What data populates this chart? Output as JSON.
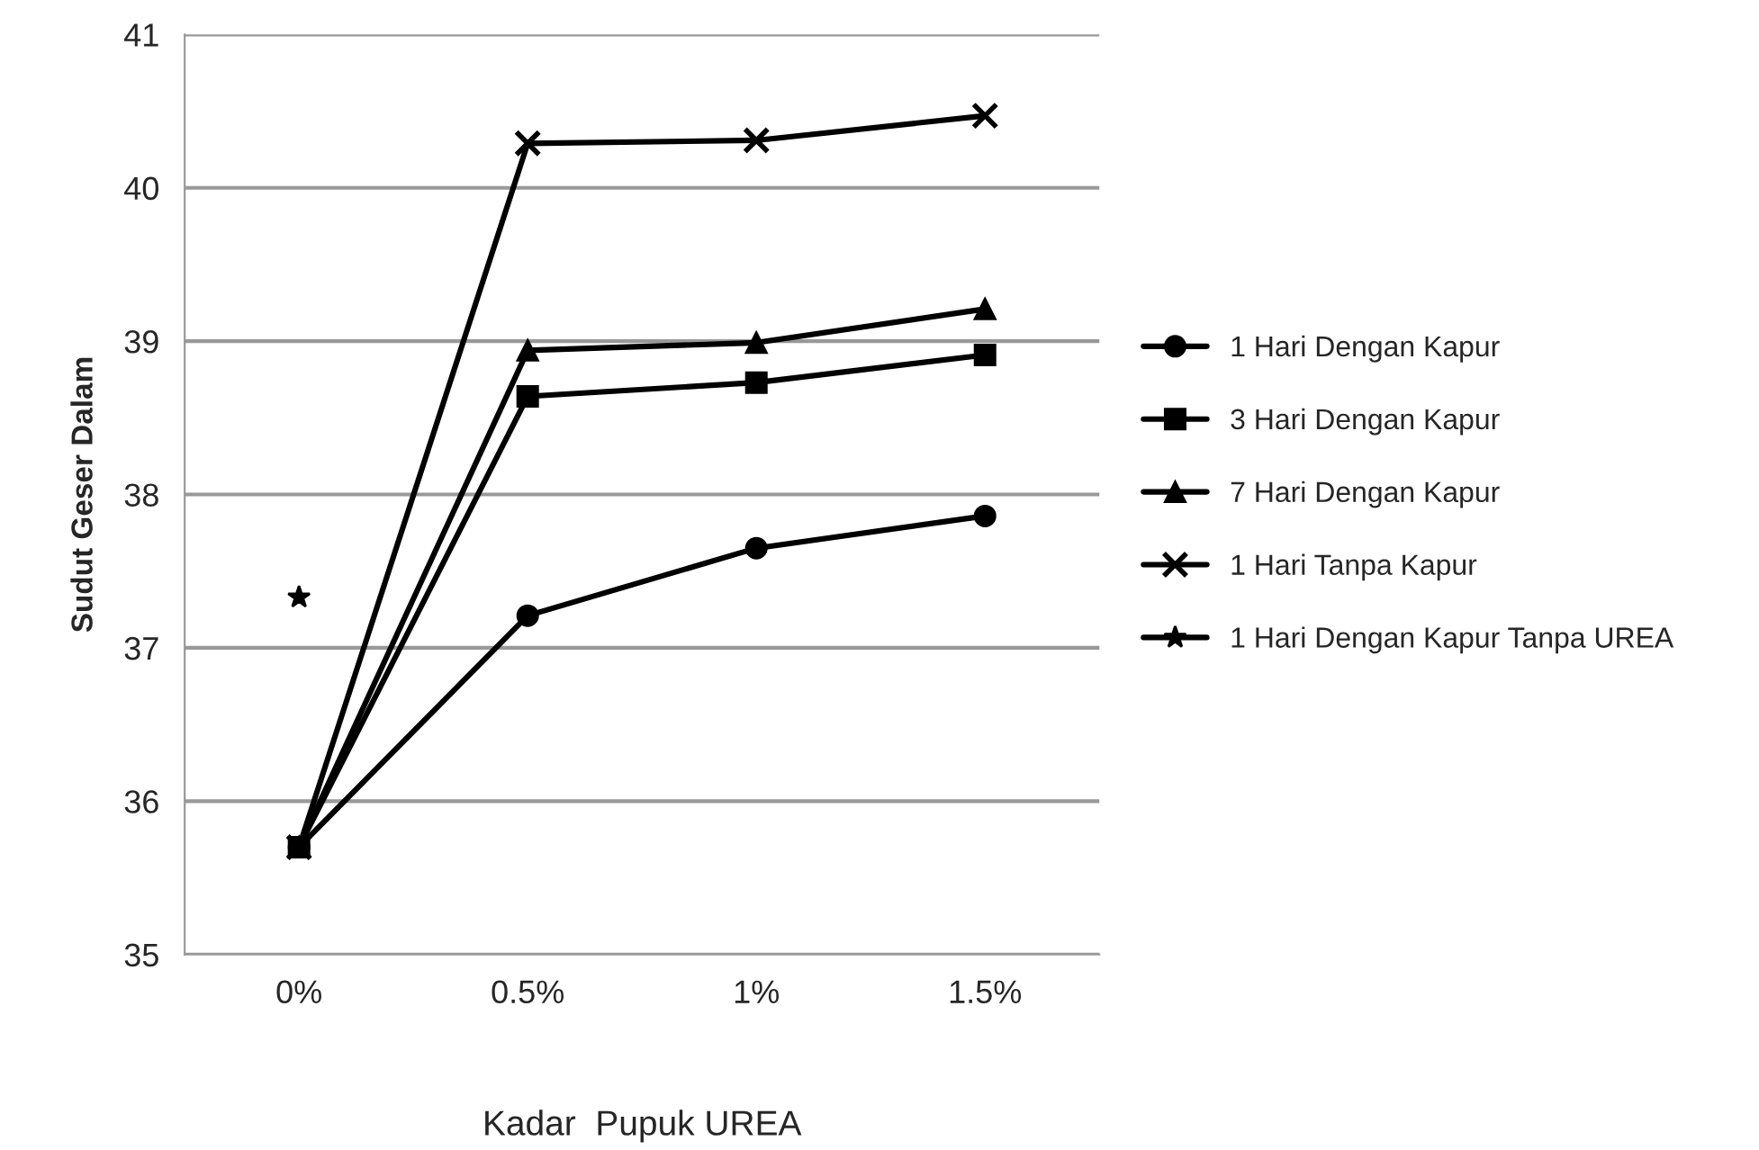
{
  "chart_data": {
    "type": "line",
    "xlabel": "Kadar  Pupuk UREA",
    "ylabel": "Sudut Geser Dalam",
    "categories": [
      "0%",
      "0.5%",
      "1%",
      "1.5%"
    ],
    "series": [
      {
        "name": "1 Hari Dengan Kapur",
        "color": "#000000",
        "marker": "circle",
        "values": [
          35.7,
          37.21,
          37.65,
          37.86
        ]
      },
      {
        "name": "3 Hari Dengan Kapur",
        "color": "#000000",
        "marker": "square",
        "values": [
          35.7,
          38.64,
          38.73,
          38.91
        ]
      },
      {
        "name": "7 Hari Dengan Kapur",
        "color": "#000000",
        "marker": "triangle",
        "values": [
          35.7,
          38.94,
          38.99,
          39.21
        ]
      },
      {
        "name": "1 Hari Tanpa Kapur",
        "color": "#000000",
        "marker": "cross",
        "values": [
          35.7,
          40.29,
          40.31,
          40.47
        ]
      },
      {
        "name": "1 Hari Dengan Kapur Tanpa UREA",
        "color": "#000000",
        "marker": "star",
        "values": [
          37.33,
          null,
          null,
          null
        ]
      }
    ],
    "ylim": [
      35,
      41
    ],
    "yticks": [
      35,
      36,
      37,
      38,
      39,
      40,
      41
    ],
    "grid": "y",
    "legend": "right",
    "line_style": "solid"
  }
}
